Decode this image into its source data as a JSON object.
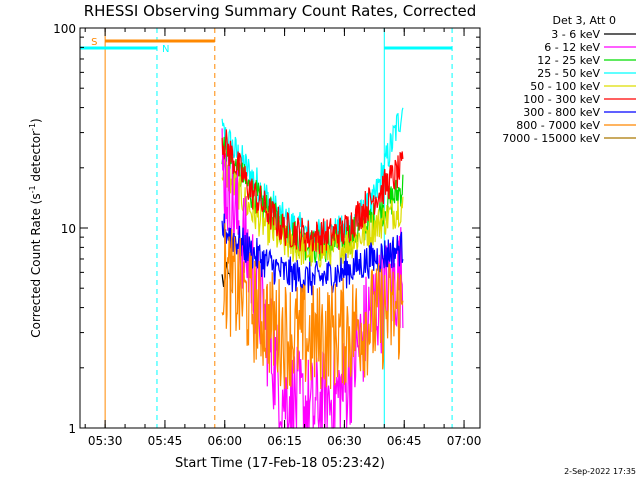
{
  "chart_data": {
    "type": "line",
    "title": "RHESSI Observing Summary Count Rates, Corrected",
    "xlabel": "Start Time (17-Feb-18 05:23:42)",
    "ylabel": "Corrected Count Rate (s",
    "ylabel_sup": "-1",
    "ylabel_mid": " detector",
    "ylabel_sup2": "-1",
    "ylabel_end": ")",
    "y_scale": "log",
    "ylim": [
      1,
      100
    ],
    "xlim": [
      "05:23:42",
      "07:04:00"
    ],
    "x_ticks": [
      "05:30",
      "05:45",
      "06:00",
      "06:15",
      "06:30",
      "06:45",
      "07:00"
    ],
    "y_ticks": [
      "1",
      "10",
      "100"
    ],
    "legend": {
      "placement": "top-right",
      "header": "Det 3, Att 0",
      "entries": [
        {
          "label": "3 - 6 keV",
          "color": "#000000"
        },
        {
          "label": "6 - 12 keV",
          "color": "#ff00ff"
        },
        {
          "label": "12 - 25 keV",
          "color": "#00dd00"
        },
        {
          "label": "25 - 50 keV",
          "color": "#00ffff"
        },
        {
          "label": "50 - 100 keV",
          "color": "#dddd00"
        },
        {
          "label": "100 - 300 keV",
          "color": "#ff0000"
        },
        {
          "label": "300 - 800 keV",
          "color": "#0000ff"
        },
        {
          "label": "800 - 7000 keV",
          "color": "#ff8800"
        },
        {
          "label": "7000 - 15000 keV",
          "color": "#aa7700"
        }
      ]
    },
    "data_window": {
      "start": "05:59:20",
      "end": "06:44:40"
    },
    "series": [
      {
        "label": "3 - 6 keV",
        "color": "#000000",
        "values": [
          5.5,
          5.6,
          5.4
        ]
      },
      {
        "label": "6 - 12 keV",
        "color": "#ff00ff",
        "values": [
          20,
          6,
          1.5,
          1.2,
          1.5,
          4,
          6
        ]
      },
      {
        "label": "12 - 25 keV",
        "color": "#00dd00",
        "values": [
          25,
          15,
          10,
          8,
          8.5,
          11,
          16
        ]
      },
      {
        "label": "25 - 50 keV",
        "color": "#00ffff",
        "values": [
          30,
          18,
          11,
          9,
          9.5,
          13,
          40
        ]
      },
      {
        "label": "50 - 100 keV",
        "color": "#dddd00",
        "values": [
          20,
          12,
          8.5,
          7.5,
          8,
          10,
          13
        ]
      },
      {
        "label": "100 - 300 keV",
        "color": "#ff0000",
        "values": [
          28,
          15,
          10,
          9,
          9.5,
          14,
          20
        ]
      },
      {
        "label": "300 - 800 keV",
        "color": "#0000ff",
        "values": [
          10,
          7.5,
          6,
          5.5,
          6,
          7,
          8
        ]
      },
      {
        "label": "800 - 7000 keV",
        "color": "#ff8800",
        "values": [
          6,
          4,
          3,
          2.8,
          3,
          3.5,
          4
        ]
      }
    ],
    "annotations": {
      "saa_label": "S",
      "saa_color": "#ff8800",
      "night_label": "N",
      "night_color": "#00ffff",
      "saa_bar": {
        "start": "05:30:00",
        "end": "05:57:30"
      },
      "night_bars": [
        {
          "start": "05:23:42",
          "end": "05:43:00"
        },
        {
          "start": "06:40:00",
          "end": "06:57:00"
        }
      ],
      "saa_solid_line": "05:30:00",
      "saa_dashed_line": "05:57:30",
      "night_solid_lines": [
        "05:23:42",
        "06:40:00"
      ],
      "night_dashed_lines": [
        "05:43:00",
        "06:57:00"
      ]
    },
    "grid": false
  },
  "footer": {
    "date_stamp": "2-Sep-2022 17:35"
  }
}
